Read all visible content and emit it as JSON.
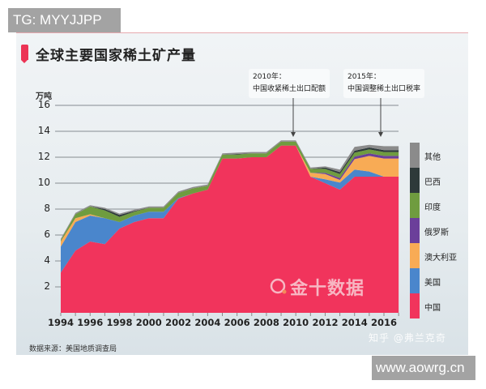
{
  "watermarks": {
    "top_left": "TG: MYYJJPP",
    "bottom_right": "www.aowrg.cn",
    "zhihu": "知乎 @弗兰克奇",
    "logo": "金十数据"
  },
  "header": {
    "title": "全球主要国家稀土矿产量"
  },
  "annotations": [
    {
      "year_label": "2010年：",
      "text": "中国收紧稀土出口配额",
      "x_year": 2010
    },
    {
      "year_label": "2015年：",
      "text": "中国调整稀土出口税率",
      "x_year": 2015.5
    }
  ],
  "source": "数据来源：美国地质调查局",
  "colors": {
    "中国": "#f1345c",
    "美国": "#4a86cc",
    "澳大利亚": "#f8ab55",
    "俄罗斯": "#6b3f9a",
    "印度": "#6f9c3f",
    "巴西": "#2e3a3a",
    "其他": "#8b8b8b"
  },
  "chart_data": {
    "type": "area",
    "stacked": true,
    "title": "全球主要国家稀土矿产量",
    "xlabel": "",
    "ylabel": "万吨",
    "ylim": [
      0,
      16
    ],
    "yticks": [
      2,
      4,
      6,
      8,
      10,
      12,
      14,
      16
    ],
    "xticks": [
      1994,
      1996,
      1998,
      2000,
      2002,
      2004,
      2006,
      2008,
      2010,
      2012,
      2014,
      2016
    ],
    "grid": true,
    "legend_position": "right",
    "x": [
      1994,
      1995,
      1996,
      1997,
      1998,
      1999,
      2000,
      2001,
      2002,
      2003,
      2004,
      2005,
      2006,
      2007,
      2008,
      2009,
      2010,
      2011,
      2012,
      2013,
      2014,
      2015,
      2016,
      2017
    ],
    "series": [
      {
        "name": "中国",
        "values": [
          3.1,
          4.8,
          5.5,
          5.3,
          6.5,
          7.0,
          7.3,
          7.3,
          8.8,
          9.2,
          9.5,
          11.9,
          11.9,
          12.0,
          12.0,
          12.9,
          12.9,
          10.5,
          10.0,
          9.5,
          10.5,
          10.5,
          10.5,
          10.5
        ]
      },
      {
        "name": "美国",
        "values": [
          2.0,
          2.2,
          2.0,
          2.0,
          0.5,
          0.5,
          0.5,
          0.5,
          0.05,
          0,
          0,
          0,
          0,
          0,
          0,
          0,
          0,
          0,
          0.3,
          0.55,
          0.55,
          0.4,
          0,
          0
        ]
      },
      {
        "name": "澳大利亚",
        "values": [
          0.4,
          0.3,
          0.1,
          0,
          0,
          0,
          0,
          0,
          0,
          0,
          0,
          0,
          0,
          0,
          0,
          0,
          0,
          0.3,
          0.4,
          0.2,
          0.8,
          1.2,
          1.4,
          1.4
        ]
      },
      {
        "name": "俄罗斯",
        "values": [
          0,
          0,
          0,
          0,
          0,
          0,
          0,
          0,
          0,
          0,
          0,
          0,
          0,
          0,
          0,
          0,
          0,
          0,
          0.1,
          0.15,
          0.2,
          0.2,
          0.2,
          0.2
        ]
      },
      {
        "name": "印度",
        "values": [
          0.1,
          0.3,
          0.6,
          0.6,
          0.4,
          0.3,
          0.3,
          0.3,
          0.4,
          0.4,
          0.3,
          0.3,
          0.3,
          0.3,
          0.3,
          0.3,
          0.3,
          0.3,
          0.3,
          0.3,
          0.3,
          0.3,
          0.3,
          0.3
        ]
      },
      {
        "name": "巴西",
        "values": [
          0,
          0,
          0,
          0.1,
          0.15,
          0.05,
          0,
          0,
          0,
          0,
          0,
          0,
          0.05,
          0,
          0,
          0,
          0,
          0,
          0.1,
          0.15,
          0.15,
          0.15,
          0.15,
          0.15
        ]
      },
      {
        "name": "其他",
        "values": [
          0.1,
          0.1,
          0.1,
          0.1,
          0.1,
          0.1,
          0.1,
          0.1,
          0.1,
          0.1,
          0.1,
          0.1,
          0.1,
          0.1,
          0.1,
          0.1,
          0.1,
          0.1,
          0.1,
          0.2,
          0.3,
          0.2,
          0.3,
          0.3
        ]
      }
    ]
  }
}
